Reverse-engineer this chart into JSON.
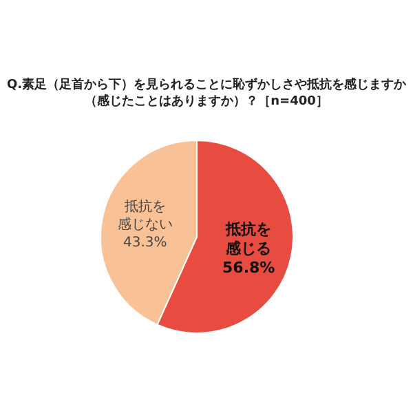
{
  "chart_data": {
    "type": "pie",
    "title": "Q.素足（足首から下）を見られることに恥ずかしさや抵抗を感じますか（感じたことはありますか）？［n=400］",
    "categories": [
      "抵抗を感じる",
      "抵抗を感じない"
    ],
    "values": [
      56.8,
      43.3
    ],
    "value_labels": [
      "56.8%",
      "43.3%"
    ],
    "colors": [
      "#e84b3f",
      "#f8c196"
    ]
  }
}
